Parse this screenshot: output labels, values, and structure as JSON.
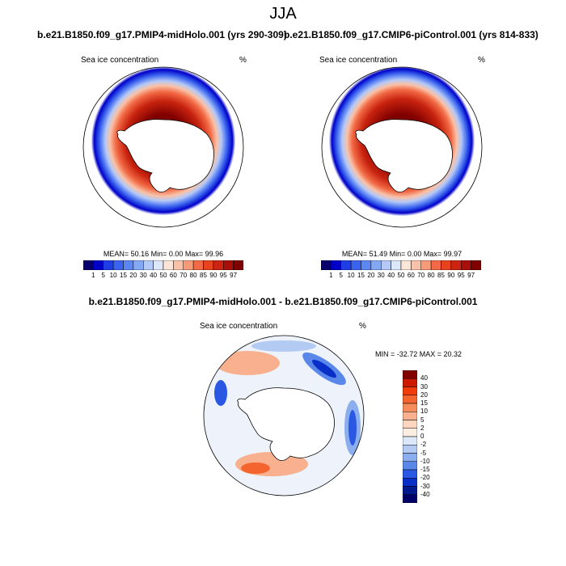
{
  "chart_data": {
    "type": "heatmap",
    "title": "JJA",
    "panels": [
      {
        "title": "b.e21.B1850.f09_g17.PMIP4-midHolo.001 (yrs 290-309)",
        "variable": "Sea ice concentration",
        "units": "%",
        "stats_text": "MEAN=  50.16  Min=   0.00  Max=  99.96",
        "mean": 50.16,
        "min": 0.0,
        "max": 99.96
      },
      {
        "title": "b.e21.B1850.f09_g17.CMIP6-piControl.001 (yrs 814-833)",
        "variable": "Sea ice concentration",
        "units": "%",
        "stats_text": "MEAN=  51.49  Min=   0.00  Max=  99.97",
        "mean": 51.49,
        "min": 0.0,
        "max": 99.97
      },
      {
        "title": "b.e21.B1850.f09_g17.PMIP4-midHolo.001 - b.e21.B1850.f09_g17.CMIP6-piControl.001",
        "variable": "Sea ice concentration",
        "units": "%",
        "stats_text": "MIN = -32.72 MAX =  20.32",
        "min": -32.72,
        "max": 20.32
      }
    ],
    "abs_colorbar": {
      "levels": [
        "1",
        "5",
        "10",
        "15",
        "20",
        "30",
        "40",
        "50",
        "60",
        "70",
        "80",
        "85",
        "90",
        "95",
        "97"
      ],
      "colors": [
        "#08006b",
        "#0000c8",
        "#1f3ee6",
        "#3a64ef",
        "#5c87f2",
        "#85a8f5",
        "#b4c9f7",
        "#dce7fa",
        "#fbe4d8",
        "#f9c2a8",
        "#f69a78",
        "#f26a45",
        "#e8431f",
        "#cc2410",
        "#a80f08",
        "#800000"
      ]
    },
    "diff_colorbar": {
      "levels": [
        "40",
        "30",
        "20",
        "15",
        "10",
        "5",
        "2",
        "0",
        "-2",
        "-5",
        "-10",
        "-15",
        "-20",
        "-30",
        "-40"
      ],
      "colors": [
        "#800000",
        "#cc1a00",
        "#f03c0a",
        "#f4642e",
        "#f68c5c",
        "#f9b08e",
        "#fcd6bf",
        "#fdeee3",
        "#dce8f8",
        "#b3cbf3",
        "#8aaeee",
        "#5a87ea",
        "#2a58e2",
        "#0a2fc8",
        "#001a8e",
        "#000066"
      ]
    }
  }
}
